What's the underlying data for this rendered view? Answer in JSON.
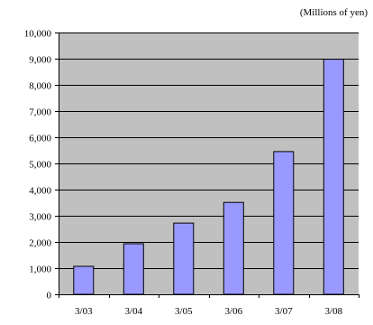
{
  "chart_data": {
    "type": "bar",
    "unit_label": "(Millions of yen)",
    "categories": [
      "3/03",
      "3/04",
      "3/05",
      "3/06",
      "3/07",
      "3/08"
    ],
    "values": [
      1070,
      1930,
      2720,
      3510,
      5450,
      8980
    ],
    "ylim": [
      0,
      10000
    ],
    "yticks": [
      0,
      1000,
      2000,
      3000,
      4000,
      5000,
      6000,
      7000,
      8000,
      9000,
      10000
    ],
    "ytick_labels": [
      "0",
      "1,000",
      "2,000",
      "3,000",
      "4,000",
      "5,000",
      "6,000",
      "7,000",
      "8,000",
      "9,000",
      "10,000"
    ],
    "grid": true,
    "legend": "none",
    "colors": {
      "plot_background": "#c0c0c0",
      "bar_fill": "#9999ff",
      "bar_stroke": "#000000",
      "gridline": "#000000"
    }
  }
}
